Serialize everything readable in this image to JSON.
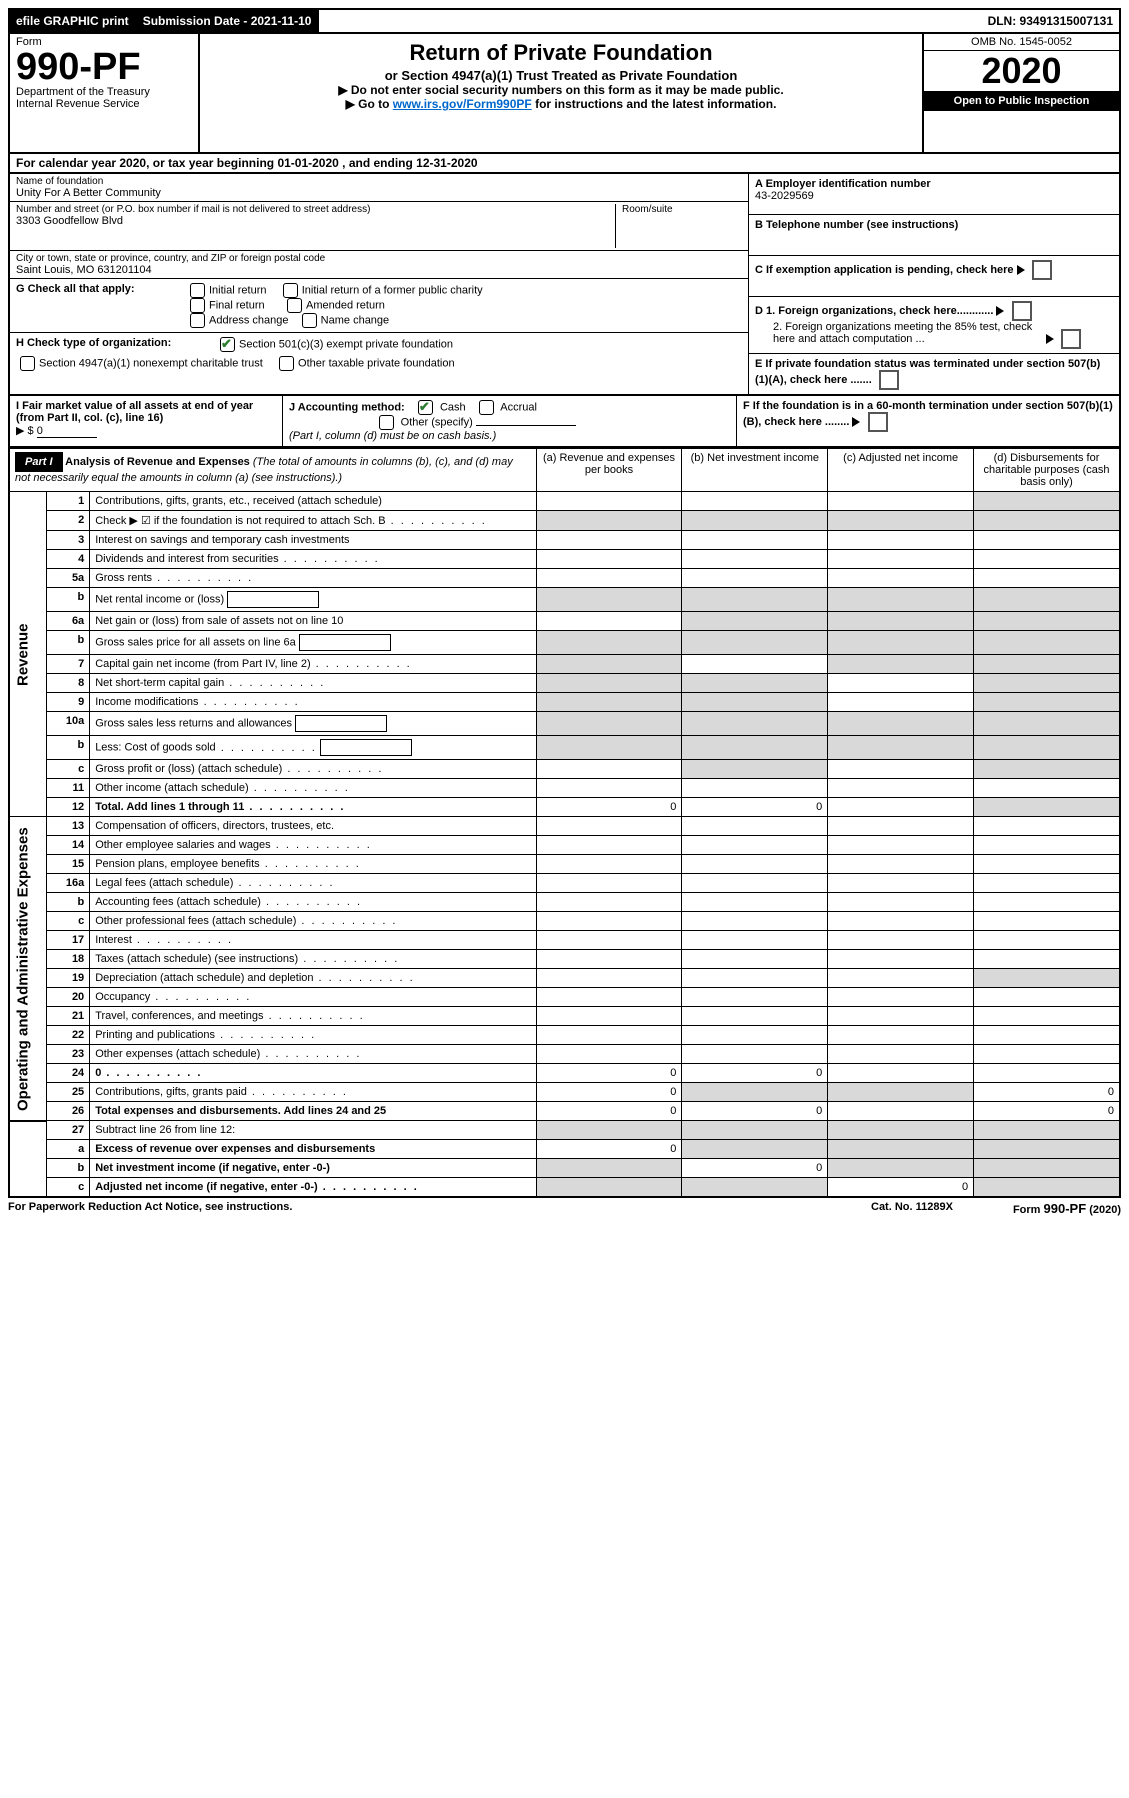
{
  "topbar": {
    "efile": "efile GRAPHIC print",
    "submission": "Submission Date - 2021-11-10",
    "dln": "DLN: 93491315007131"
  },
  "header": {
    "form_word": "Form",
    "form_no": "990-PF",
    "dept": "Department of the Treasury",
    "irs": "Internal Revenue Service",
    "title": "Return of Private Foundation",
    "subtitle": "or Section 4947(a)(1) Trust Treated as Private Foundation",
    "note1": "▶ Do not enter social security numbers on this form as it may be made public.",
    "note2_pre": "▶ Go to ",
    "note2_link": "www.irs.gov/Form990PF",
    "note2_post": " for instructions and the latest information.",
    "omb": "OMB No. 1545-0052",
    "year": "2020",
    "open": "Open to Public Inspection"
  },
  "cal_year": "For calendar year 2020, or tax year beginning 01-01-2020                         , and ending 12-31-2020",
  "foundation": {
    "name_label": "Name of foundation",
    "name": "Unity For A Better Community",
    "addr_label": "Number and street (or P.O. box number if mail is not delivered to street address)",
    "addr": "3303 Goodfellow Blvd",
    "room_label": "Room/suite",
    "city_label": "City or town, state or province, country, and ZIP or foreign postal code",
    "city": "Saint Louis, MO  631201104"
  },
  "right_info": {
    "a_label": "A Employer identification number",
    "a_val": "43-2029569",
    "b_label": "B Telephone number (see instructions)",
    "c_label": "C If exemption application is pending, check here",
    "d1": "D 1. Foreign organizations, check here............",
    "d2": "2. Foreign organizations meeting the 85% test, check here and attach computation ...",
    "e": "E  If private foundation status was terminated under section 507(b)(1)(A), check here .......",
    "f": "F  If the foundation is in a 60-month termination under section 507(b)(1)(B), check here ........"
  },
  "g": {
    "label": "G Check all that apply:",
    "opts": [
      "Initial return",
      "Initial return of a former public charity",
      "Final return",
      "Amended return",
      "Address change",
      "Name change"
    ]
  },
  "h": {
    "label": "H Check type of organization:",
    "o1": "Section 501(c)(3) exempt private foundation",
    "o2": "Section 4947(a)(1) nonexempt charitable trust",
    "o3": "Other taxable private foundation"
  },
  "i": {
    "label": "I Fair market value of all assets at end of year (from Part II, col. (c), line 16)",
    "val_prefix": "▶ $",
    "val": "0"
  },
  "j": {
    "label": "J Accounting method:",
    "cash": "Cash",
    "accrual": "Accrual",
    "other": "Other (specify)",
    "note": "(Part I, column (d) must be on cash basis.)"
  },
  "part1": {
    "label": "Part I",
    "title": "Analysis of Revenue and Expenses",
    "title_note": "(The total of amounts in columns (b), (c), and (d) may not necessarily equal the amounts in column (a) (see instructions).)",
    "col_a": "(a)   Revenue and expenses per books",
    "col_b": "(b)   Net investment income",
    "col_c": "(c)   Adjusted net income",
    "col_d": "(d)   Disbursements for charitable purposes (cash basis only)"
  },
  "side": {
    "revenue": "Revenue",
    "expenses": "Operating and Administrative Expenses"
  },
  "rows": [
    {
      "n": "1",
      "d": "Contributions, gifts, grants, etc., received (attach schedule)",
      "grey_d": true
    },
    {
      "n": "2",
      "d": "Check ▶ ☑ if the foundation is not required to attach Sch. B",
      "dots": true,
      "grey_all": true
    },
    {
      "n": "3",
      "d": "Interest on savings and temporary cash investments"
    },
    {
      "n": "4",
      "d": "Dividends and interest from securities",
      "dots": true
    },
    {
      "n": "5a",
      "d": "Gross rents",
      "dots": true
    },
    {
      "n": "b",
      "d": "Net rental income or (loss)",
      "grey_all": true,
      "inline_box": true
    },
    {
      "n": "6a",
      "d": "Net gain or (loss) from sale of assets not on line 10",
      "grey_bcd": true
    },
    {
      "n": "b",
      "d": "Gross sales price for all assets on line 6a",
      "grey_all": true,
      "inline_box": true
    },
    {
      "n": "7",
      "d": "Capital gain net income (from Part IV, line 2)",
      "dots": true,
      "grey_a": true,
      "grey_cd": true
    },
    {
      "n": "8",
      "d": "Net short-term capital gain",
      "dots": true,
      "grey_ab": true,
      "grey_d": true
    },
    {
      "n": "9",
      "d": "Income modifications",
      "dots": true,
      "grey_ab": true,
      "grey_d": true
    },
    {
      "n": "10a",
      "d": "Gross sales less returns and allowances",
      "grey_all": true,
      "inline_box": true
    },
    {
      "n": "b",
      "d": "Less: Cost of goods sold",
      "dots": true,
      "grey_all": true,
      "inline_box": true
    },
    {
      "n": "c",
      "d": "Gross profit or (loss) (attach schedule)",
      "dots": true,
      "grey_b": true,
      "grey_d": true
    },
    {
      "n": "11",
      "d": "Other income (attach schedule)",
      "dots": true
    },
    {
      "n": "12",
      "d": "Total. Add lines 1 through 11",
      "dots": true,
      "bold": true,
      "a": "0",
      "b": "0",
      "grey_d": true
    }
  ],
  "exp_rows": [
    {
      "n": "13",
      "d": "Compensation of officers, directors, trustees, etc."
    },
    {
      "n": "14",
      "d": "Other employee salaries and wages",
      "dots": true
    },
    {
      "n": "15",
      "d": "Pension plans, employee benefits",
      "dots": true
    },
    {
      "n": "16a",
      "d": "Legal fees (attach schedule)",
      "dots": true
    },
    {
      "n": "b",
      "d": "Accounting fees (attach schedule)",
      "dots": true
    },
    {
      "n": "c",
      "d": "Other professional fees (attach schedule)",
      "dots": true
    },
    {
      "n": "17",
      "d": "Interest",
      "dots": true
    },
    {
      "n": "18",
      "d": "Taxes (attach schedule) (see instructions)",
      "dots": true
    },
    {
      "n": "19",
      "d": "Depreciation (attach schedule) and depletion",
      "dots": true,
      "grey_d": true
    },
    {
      "n": "20",
      "d": "Occupancy",
      "dots": true
    },
    {
      "n": "21",
      "d": "Travel, conferences, and meetings",
      "dots": true
    },
    {
      "n": "22",
      "d": "Printing and publications",
      "dots": true
    },
    {
      "n": "23",
      "d": "Other expenses (attach schedule)",
      "dots": true
    },
    {
      "n": "24",
      "d": "0",
      "dots": true,
      "bold": true,
      "a": "0",
      "b": "0"
    },
    {
      "n": "25",
      "d": "Contributions, gifts, grants paid",
      "dots": true,
      "a": "0",
      "grey_bc": true,
      "dval": "0"
    },
    {
      "n": "26",
      "d": "Total expenses and disbursements. Add lines 24 and 25",
      "bold": true,
      "a": "0",
      "b": "0",
      "dval": "0"
    }
  ],
  "bottom_rows": [
    {
      "n": "27",
      "d": "Subtract line 26 from line 12:",
      "grey_all": true
    },
    {
      "n": "a",
      "d": "Excess of revenue over expenses and disbursements",
      "bold": true,
      "a": "0",
      "grey_bcd": true
    },
    {
      "n": "b",
      "d": "Net investment income (if negative, enter -0-)",
      "bold": true,
      "grey_a": true,
      "b": "0",
      "grey_cd": true
    },
    {
      "n": "c",
      "d": "Adjusted net income (if negative, enter -0-)",
      "bold": true,
      "dots": true,
      "grey_ab": true,
      "c": "0",
      "grey_d": true
    }
  ],
  "footer": {
    "left": "For Paperwork Reduction Act Notice, see instructions.",
    "mid": "Cat. No. 11289X",
    "right": "Form 990-PF (2020)"
  }
}
